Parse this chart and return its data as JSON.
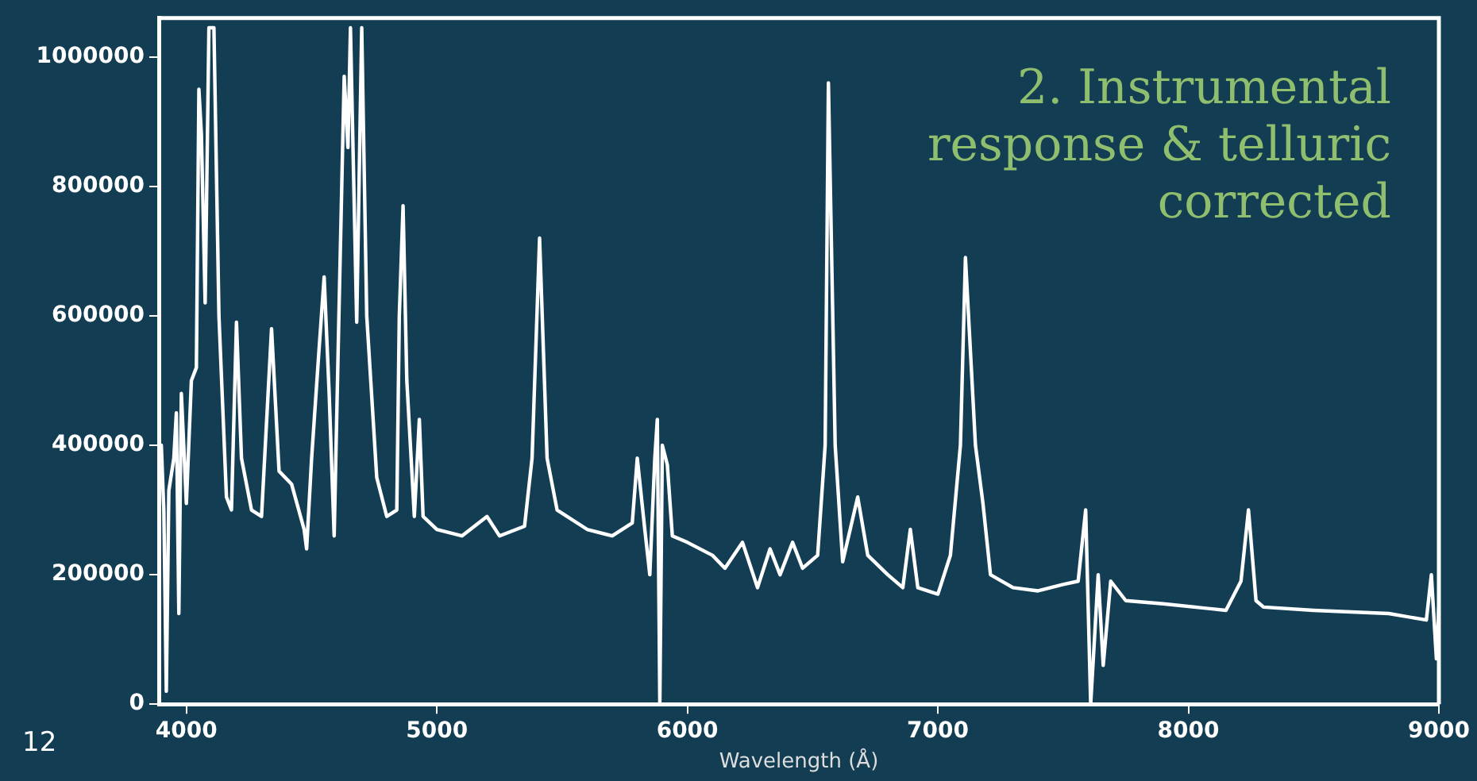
{
  "chart_data": {
    "type": "line",
    "xlabel": "Wavelength (Å)",
    "annotations": [
      "2. Instrumental response & telluric corrected",
      "12"
    ],
    "xlim": [
      3890,
      9000
    ],
    "xticks": [
      4000,
      5000,
      6000,
      7000,
      8000,
      9000
    ],
    "ylim": [
      0,
      1060000
    ],
    "yticks": [
      0,
      200000,
      400000,
      600000,
      800000,
      1000000
    ],
    "grid": false,
    "legend": false,
    "marker": "none",
    "line_style": "solid",
    "series": [
      {
        "color": "#ffffff",
        "x": [
          3890,
          3900,
          3910,
          3920,
          3930,
          3950,
          3960,
          3970,
          3980,
          4000,
          4020,
          4040,
          4050,
          4060,
          4075,
          4090,
          4110,
          4130,
          4160,
          4180,
          4200,
          4220,
          4260,
          4300,
          4340,
          4370,
          4420,
          4470,
          4480,
          4500,
          4530,
          4550,
          4570,
          4590,
          4610,
          4630,
          4645,
          4655,
          4680,
          4700,
          4720,
          4760,
          4800,
          4840,
          4850,
          4865,
          4880,
          4910,
          4930,
          4945,
          5000,
          5100,
          5200,
          5250,
          5350,
          5380,
          5410,
          5440,
          5480,
          5600,
          5700,
          5780,
          5800,
          5830,
          5850,
          5870,
          5880,
          5890,
          5900,
          5920,
          5940,
          6000,
          6100,
          6150,
          6220,
          6280,
          6330,
          6370,
          6420,
          6460,
          6520,
          6550,
          6563,
          6590,
          6620,
          6680,
          6720,
          6800,
          6860,
          6890,
          6920,
          7000,
          7050,
          7090,
          7110,
          7150,
          7180,
          7210,
          7300,
          7400,
          7450,
          7500,
          7560,
          7590,
          7610,
          7640,
          7660,
          7690,
          7750,
          7900,
          8150,
          8210,
          8240,
          8270,
          8300,
          8500,
          8800,
          8950,
          8970,
          8990,
          9000
        ],
        "values": [
          350000,
          400000,
          300000,
          20000,
          330000,
          380000,
          450000,
          140000,
          480000,
          310000,
          500000,
          520000,
          950000,
          880000,
          620000,
          1045000,
          1045000,
          600000,
          320000,
          300000,
          590000,
          380000,
          300000,
          290000,
          580000,
          360000,
          340000,
          270000,
          240000,
          380000,
          550000,
          660000,
          480000,
          260000,
          620000,
          970000,
          860000,
          1045000,
          590000,
          1045000,
          600000,
          350000,
          290000,
          300000,
          600000,
          770000,
          500000,
          290000,
          440000,
          290000,
          270000,
          260000,
          290000,
          260000,
          275000,
          380000,
          720000,
          380000,
          300000,
          270000,
          260000,
          280000,
          380000,
          270000,
          200000,
          380000,
          440000,
          0,
          400000,
          370000,
          260000,
          250000,
          230000,
          210000,
          250000,
          180000,
          240000,
          200000,
          250000,
          210000,
          230000,
          400000,
          960000,
          400000,
          220000,
          320000,
          230000,
          200000,
          180000,
          270000,
          180000,
          170000,
          230000,
          400000,
          690000,
          400000,
          310000,
          200000,
          180000,
          175000,
          180000,
          185000,
          190000,
          300000,
          0,
          200000,
          60000,
          190000,
          160000,
          155000,
          145000,
          190000,
          300000,
          160000,
          150000,
          145000,
          140000,
          130000,
          200000,
          70000,
          150000
        ]
      }
    ]
  }
}
